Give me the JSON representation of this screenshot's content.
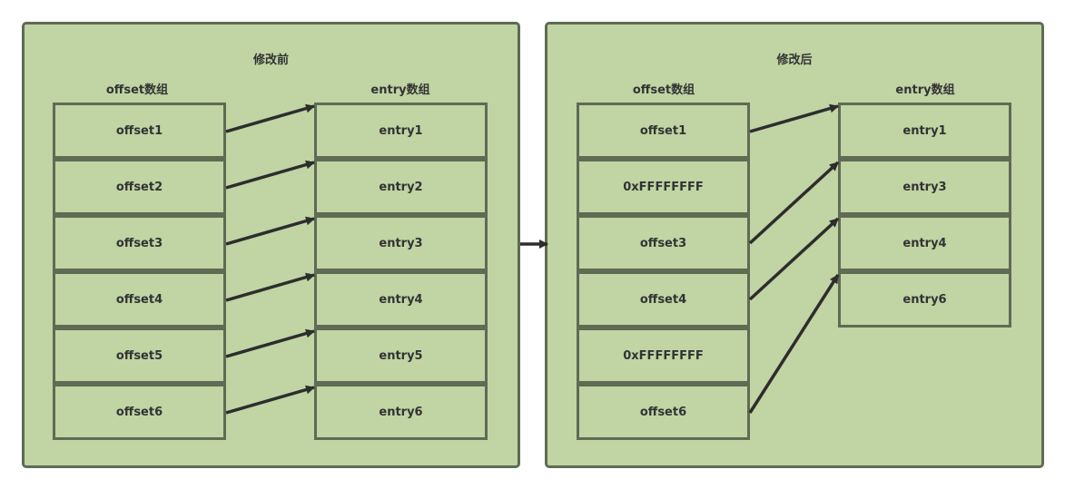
{
  "colors": {
    "panel_fill": "#c0d4a4",
    "border": "#5f6b53",
    "arrow": "#2d2d2d",
    "text": "#333333"
  },
  "before": {
    "title": "修改前",
    "offset_label": "offset数组",
    "entry_label": "entry数组",
    "offsets": [
      "offset1",
      "offset2",
      "offset3",
      "offset4",
      "offset5",
      "offset6"
    ],
    "entries": [
      "entry1",
      "entry2",
      "entry3",
      "entry4",
      "entry5",
      "entry6"
    ]
  },
  "after": {
    "title": "修改后",
    "offset_label": "offset数组",
    "entry_label": "entry数组",
    "offsets": [
      "offset1",
      "0xFFFFFFFF",
      "offset3",
      "offset4",
      "0xFFFFFFFF",
      "offset6"
    ],
    "entries": [
      "entry1",
      "entry3",
      "entry4",
      "entry6"
    ]
  }
}
